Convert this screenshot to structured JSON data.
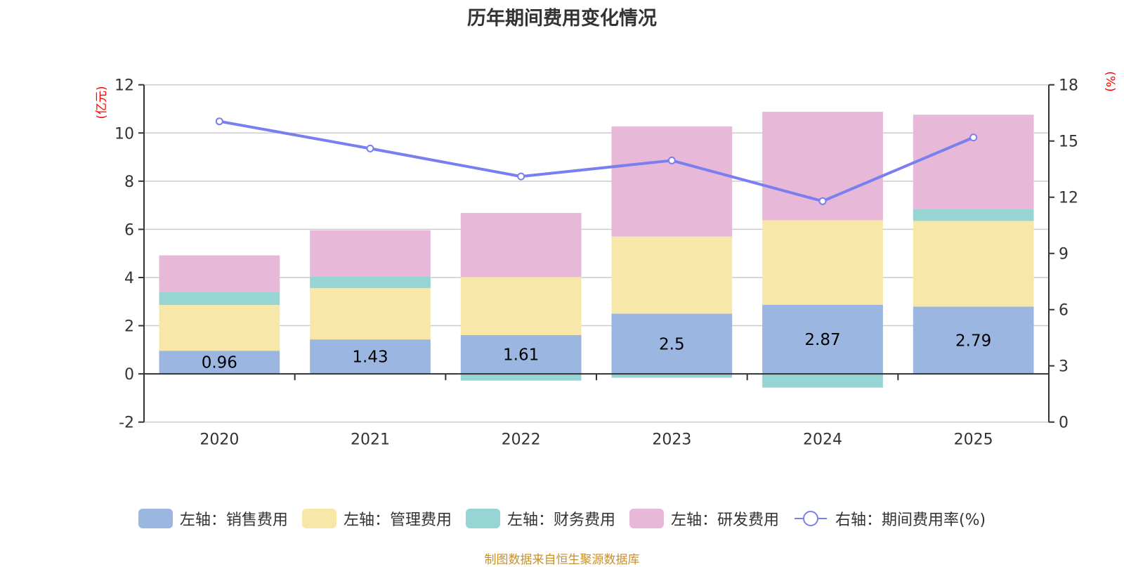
{
  "title": "历年期间费用变化情况",
  "source": "制图数据来自恒生聚源数据库",
  "colors": {
    "sales": "#9bb7e1",
    "management": "#f7e7a9",
    "finance": "#97d4d4",
    "rnd": "#e7b8d8",
    "rate_line": "#7a7ff0",
    "axis_unit": "#ff0000",
    "source": "#c8902a"
  },
  "legend": [
    {
      "label": "左轴：销售费用",
      "type": "bar",
      "key": "sales"
    },
    {
      "label": "左轴：管理费用",
      "type": "bar",
      "key": "management"
    },
    {
      "label": "左轴：财务费用",
      "type": "bar",
      "key": "finance"
    },
    {
      "label": "左轴：研发费用",
      "type": "bar",
      "key": "rnd"
    },
    {
      "label": "右轴：期间费用率(%)",
      "type": "line",
      "key": "rate_line"
    }
  ],
  "chart_data": {
    "type": "bar",
    "title": "历年期间费用变化情况",
    "categories": [
      "2020",
      "2021",
      "2022",
      "2023",
      "2024",
      "2025"
    ],
    "series": [
      {
        "name": "左轴：销售费用",
        "axis": "left",
        "type": "bar",
        "stack": "total",
        "values": [
          0.96,
          1.43,
          1.61,
          2.5,
          2.87,
          2.79
        ],
        "labels_shown": true
      },
      {
        "name": "左轴：管理费用",
        "axis": "left",
        "type": "bar",
        "stack": "total",
        "values": [
          1.9,
          2.13,
          2.41,
          3.2,
          3.51,
          3.56
        ]
      },
      {
        "name": "左轴：财务费用",
        "axis": "left",
        "type": "bar",
        "stack": "total",
        "values": [
          0.54,
          0.47,
          -0.28,
          -0.16,
          -0.57,
          0.5
        ]
      },
      {
        "name": "左轴：研发费用",
        "axis": "left",
        "type": "bar",
        "stack": "total",
        "values": [
          1.52,
          1.93,
          2.66,
          4.57,
          4.5,
          3.91
        ]
      },
      {
        "name": "右轴：期间费用率(%)",
        "axis": "right",
        "type": "line",
        "values": [
          16.05,
          14.6,
          13.11,
          13.96,
          11.79,
          15.19
        ]
      }
    ],
    "left_axis": {
      "label": "(亿元)",
      "range": [
        -2,
        12
      ],
      "ticks": [
        -2,
        0,
        2,
        4,
        6,
        8,
        10,
        12
      ]
    },
    "right_axis": {
      "label": "(%)",
      "range": [
        0,
        18
      ],
      "ticks": [
        0,
        3,
        6,
        9,
        12,
        15,
        18
      ]
    },
    "grid": true,
    "legend_position": "bottom"
  }
}
